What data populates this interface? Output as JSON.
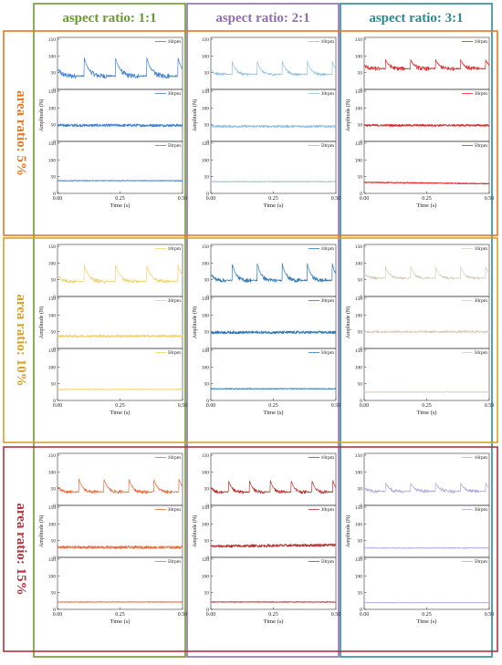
{
  "figure": {
    "column_headers": [
      "aspect ratio: 1:1",
      "aspect ratio: 2:1",
      "aspect ratio: 3:1"
    ],
    "column_colors": [
      "#6b9a2e",
      "#8f6db3",
      "#2a8a94"
    ],
    "row_headers": [
      "area ratio: 5%",
      "area ratio: 10%",
      "area ratio: 15%"
    ],
    "row_colors": [
      "#e87722",
      "#d9a127",
      "#b2323e"
    ]
  },
  "chart_data": [
    {
      "type": "line",
      "row": "area ratio: 5%",
      "column": "aspect ratio: 1:1",
      "color": "#3f7fd6",
      "xlabel": "Time (s)",
      "ylabel": "Amplitude (N)",
      "xlim": [
        0,
        0.5
      ],
      "ylim": [
        0,
        150
      ],
      "x_ticks": [
        "0.00",
        "0.25",
        "0.50"
      ],
      "y_ticks": [
        "0",
        "50",
        "100",
        "150"
      ],
      "series": [
        {
          "name": "10rpm",
          "type": "periodic",
          "base": 40,
          "peak": 95,
          "band": 15,
          "cycles": 4
        },
        {
          "name": "30rpm",
          "type": "flat",
          "level": 48,
          "band": 8
        },
        {
          "name": "50rpm",
          "type": "flat",
          "level": 38,
          "band": 2
        }
      ]
    },
    {
      "type": "line",
      "row": "area ratio: 5%",
      "column": "aspect ratio: 2:1",
      "color": "#8fc0df",
      "xlabel": "Time (s)",
      "ylabel": "Amplitude (N)",
      "xlim": [
        0,
        0.5
      ],
      "ylim": [
        0,
        150
      ],
      "x_ticks": [
        "0.00",
        "0.25",
        "0.50"
      ],
      "y_ticks": [
        "0",
        "50",
        "100",
        "150"
      ],
      "series": [
        {
          "name": "10rpm",
          "type": "periodic",
          "base": 45,
          "peak": 85,
          "band": 8,
          "cycles": 5
        },
        {
          "name": "30rpm",
          "type": "flat",
          "level": 45,
          "band": 7
        },
        {
          "name": "50rpm",
          "type": "flat",
          "level": 35,
          "band": 2
        }
      ]
    },
    {
      "type": "line",
      "row": "area ratio: 5%",
      "column": "aspect ratio: 3:1",
      "color": "#e0262a",
      "xlabel": "Time (s)",
      "ylabel": "Amplitude (N)",
      "xlim": [
        0,
        0.5
      ],
      "ylim": [
        0,
        150
      ],
      "x_ticks": [
        "0.00",
        "0.25",
        "0.50"
      ],
      "y_ticks": [
        "0",
        "50",
        "100",
        "150"
      ],
      "series": [
        {
          "name": "10rpm",
          "type": "periodic",
          "base": 62,
          "peak": 90,
          "band": 12,
          "cycles": 5
        },
        {
          "name": "30rpm",
          "type": "flat",
          "level": 48,
          "band": 6
        },
        {
          "name": "50rpm",
          "type": "flat",
          "level": 33,
          "band": 3,
          "drift": -4
        }
      ]
    },
    {
      "type": "line",
      "row": "area ratio: 10%",
      "column": "aspect ratio: 1:1",
      "color": "#f2d26a",
      "xlabel": "Time (s)",
      "ylabel": "Amplitude (N)",
      "xlim": [
        0,
        0.5
      ],
      "ylim": [
        0,
        150
      ],
      "x_ticks": [
        "0.00",
        "0.25",
        "0.50"
      ],
      "y_ticks": [
        "0",
        "50",
        "100",
        "150"
      ],
      "series": [
        {
          "name": "10rpm",
          "type": "periodic",
          "base": 45,
          "peak": 95,
          "band": 10,
          "cycles": 4
        },
        {
          "name": "30rpm",
          "type": "flat",
          "level": 37,
          "band": 7
        },
        {
          "name": "50rpm",
          "type": "flat",
          "level": 33,
          "band": 2
        }
      ]
    },
    {
      "type": "line",
      "row": "area ratio: 10%",
      "column": "aspect ratio: 2:1",
      "color": "#2f78b8",
      "xlabel": "Time (s)",
      "ylabel": "Amplitude (N)",
      "xlim": [
        0,
        0.5
      ],
      "ylim": [
        0,
        150
      ],
      "x_ticks": [
        "0.00",
        "0.25",
        "0.50"
      ],
      "y_ticks": [
        "0",
        "50",
        "100",
        "150"
      ],
      "series": [
        {
          "name": "10rpm",
          "type": "periodic",
          "base": 48,
          "peak": 100,
          "band": 12,
          "cycles": 5
        },
        {
          "name": "30rpm",
          "type": "flat",
          "level": 48,
          "band": 8
        },
        {
          "name": "50rpm",
          "type": "flat",
          "level": 35,
          "band": 2
        }
      ]
    },
    {
      "type": "line",
      "row": "area ratio: 10%",
      "column": "aspect ratio: 3:1",
      "color": "#d6cdbd",
      "xlabel": "Time (s)",
      "ylabel": "Amplitude (N)",
      "xlim": [
        0,
        0.5
      ],
      "ylim": [
        0,
        150
      ],
      "x_ticks": [
        "0.00",
        "0.25",
        "0.50"
      ],
      "y_ticks": [
        "0",
        "50",
        "100",
        "150"
      ],
      "series": [
        {
          "name": "10rpm",
          "type": "periodic",
          "base": 55,
          "peak": 90,
          "band": 8,
          "cycles": 5
        },
        {
          "name": "30rpm",
          "type": "flat",
          "level": 50,
          "band": 6
        },
        {
          "name": "50rpm",
          "type": "flat",
          "level": 25,
          "band": 2
        }
      ]
    },
    {
      "type": "line",
      "row": "area ratio: 15%",
      "column": "aspect ratio: 1:1",
      "color": "#ef6a3a",
      "xlabel": "Time (s)",
      "ylabel": "Amplitude (N)",
      "xlim": [
        0,
        0.5
      ],
      "ylim": [
        0,
        150
      ],
      "x_ticks": [
        "0.00",
        "0.25",
        "0.50"
      ],
      "y_ticks": [
        "0",
        "50",
        "100",
        "150"
      ],
      "series": [
        {
          "name": "10rpm",
          "type": "periodic",
          "base": 40,
          "peak": 80,
          "band": 10,
          "cycles": 5
        },
        {
          "name": "30rpm",
          "type": "flat",
          "level": 30,
          "band": 8
        },
        {
          "name": "50rpm",
          "type": "flat",
          "level": 22,
          "band": 2
        }
      ]
    },
    {
      "type": "line",
      "row": "area ratio: 15%",
      "column": "aspect ratio: 2:1",
      "color": "#b8312f",
      "xlabel": "Time (s)",
      "ylabel": "Amplitude (N)",
      "xlim": [
        0,
        0.5
      ],
      "ylim": [
        0,
        150
      ],
      "x_ticks": [
        "0.00",
        "0.25",
        "0.50"
      ],
      "y_ticks": [
        "0",
        "50",
        "100",
        "150"
      ],
      "series": [
        {
          "name": "10rpm",
          "type": "periodic",
          "base": 40,
          "peak": 75,
          "band": 10,
          "cycles": 6
        },
        {
          "name": "30rpm",
          "type": "flat",
          "level": 33,
          "band": 8,
          "drift": 4
        },
        {
          "name": "50rpm",
          "type": "flat",
          "level": 22,
          "band": 2
        }
      ]
    },
    {
      "type": "line",
      "row": "area ratio: 15%",
      "column": "aspect ratio: 3:1",
      "color": "#b1a9dc",
      "xlabel": "Time (s)",
      "ylabel": "Amplitude (N)",
      "xlim": [
        0,
        0.5
      ],
      "ylim": [
        0,
        150
      ],
      "x_ticks": [
        "0.00",
        "0.25",
        "0.50"
      ],
      "y_ticks": [
        "0",
        "50",
        "100",
        "150"
      ],
      "series": [
        {
          "name": "10rpm",
          "type": "periodic",
          "base": 42,
          "peak": 68,
          "band": 10,
          "cycles": 5
        },
        {
          "name": "30rpm",
          "type": "flat",
          "level": 28,
          "band": 2
        },
        {
          "name": "50rpm",
          "type": "flat",
          "level": 20,
          "band": 1
        }
      ]
    }
  ]
}
